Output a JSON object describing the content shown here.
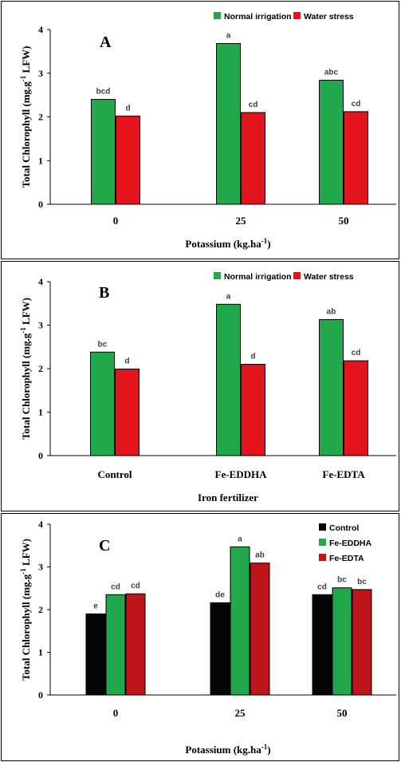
{
  "colors": {
    "normal_irrigation": "#20a84a",
    "water_stress": "#e3141b",
    "control": "#050505",
    "fe_eddha": "#20a84a",
    "fe_edta": "#c0141b",
    "axis": "#000000",
    "border": "#000000"
  },
  "chart_data": [
    {
      "type": "bar",
      "panel_label": "A",
      "xlabel": "Potassium (kg.ha",
      "xlabel_sup": "-1",
      "xlabel_tail": ")",
      "ylabel": "Total Chlorophyll (mg.g",
      "ylabel_sup": "-1",
      "ylabel_tail": " LFW)",
      "ylim": [
        0,
        4
      ],
      "yticks": [
        "0",
        "1",
        "2",
        "3",
        "4"
      ],
      "categories": [
        "0",
        "25",
        "50"
      ],
      "legend_position": "top-right",
      "series": [
        {
          "name": "Normal irrigation",
          "color_key": "normal_irrigation",
          "values": [
            2.4,
            3.68,
            2.84
          ],
          "labels": [
            "bcd",
            "a",
            "abc"
          ]
        },
        {
          "name": "Water stress",
          "color_key": "water_stress",
          "values": [
            2.02,
            2.1,
            2.12
          ],
          "labels": [
            "d",
            "cd",
            "cd"
          ]
        }
      ]
    },
    {
      "type": "bar",
      "panel_label": "B",
      "xlabel": "Iron fertilizer",
      "xlabel_sup": "",
      "xlabel_tail": "",
      "ylabel": "Total Chlorophyll (mg.g",
      "ylabel_sup": "-1",
      "ylabel_tail": " LFW)",
      "ylim": [
        0,
        4
      ],
      "yticks": [
        "0",
        "1",
        "2",
        "3",
        "4"
      ],
      "categories": [
        "Control",
        "Fe-EDDHA",
        "Fe-EDTA"
      ],
      "legend_position": "top-right",
      "series": [
        {
          "name": "Normal irrigation",
          "color_key": "normal_irrigation",
          "values": [
            2.38,
            3.48,
            3.13
          ],
          "labels": [
            "bc",
            "a",
            "ab"
          ]
        },
        {
          "name": "Water stress",
          "color_key": "water_stress",
          "values": [
            1.99,
            2.1,
            2.18
          ],
          "labels": [
            "d",
            "d",
            "cd"
          ]
        }
      ]
    },
    {
      "type": "bar",
      "panel_label": "C",
      "xlabel": "Potassium (kg.ha",
      "xlabel_sup": "-1",
      "xlabel_tail": ")",
      "ylabel": "Total Chlorophyll (mg.g",
      "ylabel_sup": "-1",
      "ylabel_tail": " LFW)",
      "ylim": [
        0,
        4
      ],
      "yticks": [
        "0",
        "1",
        "2",
        "3",
        "4"
      ],
      "categories": [
        "0",
        "25",
        "50"
      ],
      "legend_position": "top-right",
      "series": [
        {
          "name": "Control",
          "color_key": "control",
          "values": [
            1.9,
            2.16,
            2.35
          ],
          "labels": [
            "e",
            "de",
            "cd"
          ]
        },
        {
          "name": "Fe-EDDHA",
          "color_key": "fe_eddha",
          "values": [
            2.35,
            3.47,
            2.51
          ],
          "labels": [
            "cd",
            "a",
            "bc"
          ]
        },
        {
          "name": "Fe-EDTA",
          "color_key": "fe_edta",
          "values": [
            2.37,
            3.09,
            2.47
          ],
          "labels": [
            "cd",
            "ab",
            "bc"
          ]
        }
      ]
    }
  ]
}
